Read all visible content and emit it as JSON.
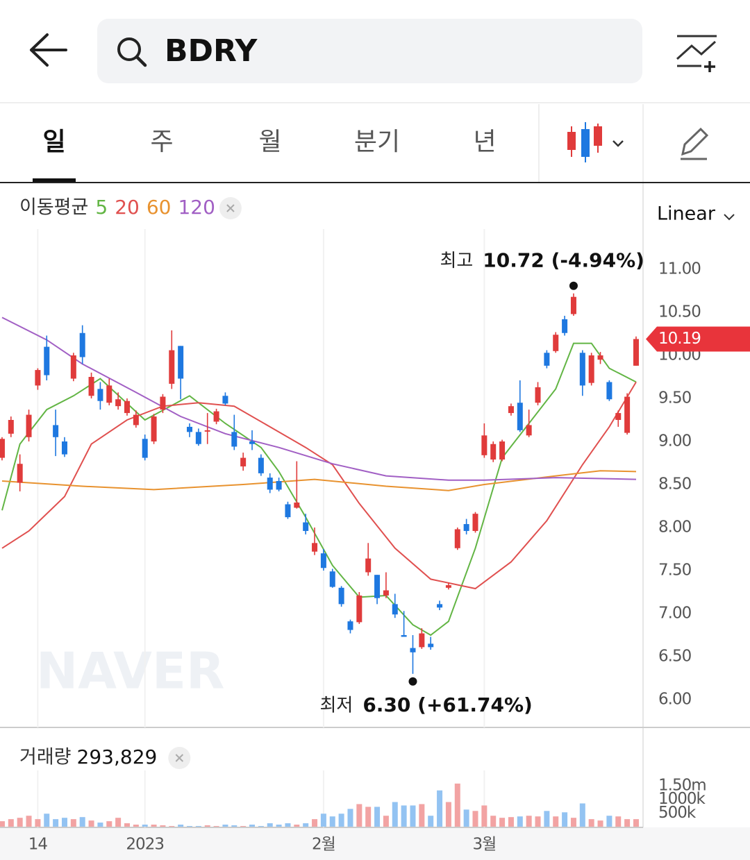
{
  "search": {
    "query": "BDRY"
  },
  "tabs": [
    "일",
    "주",
    "월",
    "분기",
    "년"
  ],
  "selected_tab": "일",
  "watermark": "NAVER",
  "chart_data": [
    {
      "type": "candlestick",
      "legend_title": "이동평균",
      "scale_label": "Linear",
      "log_scale": false,
      "grid": false,
      "xgrid": true,
      "up_color": "#e03b3b",
      "down_color": "#1e78e0",
      "xlim": [
        -0.23,
        71.78
      ],
      "ylim": [
        5.7,
        12.0
      ],
      "yticks": [
        {
          "value": 6,
          "label": "6.00"
        },
        {
          "value": 6.5,
          "label": "6.50"
        },
        {
          "value": 7,
          "label": "7.00"
        },
        {
          "value": 7.5,
          "label": "7.50"
        },
        {
          "value": 8,
          "label": "8.00"
        },
        {
          "value": 8.5,
          "label": "8.50"
        },
        {
          "value": 9,
          "label": "9.00"
        },
        {
          "value": 9.5,
          "label": "9.50"
        },
        {
          "value": 10,
          "label": "10.00"
        },
        {
          "value": 10.5,
          "label": "10.50"
        },
        {
          "value": 11,
          "label": "11.00"
        }
      ],
      "xticks": [
        {
          "value": 4,
          "label": "14"
        },
        {
          "value": 16,
          "label": "2023"
        },
        {
          "value": 36,
          "label": "2월"
        },
        {
          "value": 54,
          "label": "3월"
        }
      ],
      "open": [
        8.81,
        9.09,
        8.52,
        9.05,
        9.65,
        10.1,
        9.19,
        9.0,
        9.73,
        10.26,
        9.53,
        9.61,
        9.45,
        9.41,
        9.33,
        9.19,
        9.03,
        9.0,
        9.37,
        9.67,
        10.11,
        9.17,
        9.11,
        9.12,
        9.23,
        9.53,
        9.11,
        8.71,
        9.0,
        8.81,
        8.58,
        8.54,
        8.27,
        8.23,
        8.06,
        7.72,
        7.7,
        7.49,
        7.3,
        6.91,
        6.9,
        7.48,
        7.45,
        7.21,
        7.11,
        6.75,
        6.6,
        6.61,
        6.65,
        7.11,
        7.3,
        7.76,
        8.04,
        7.96,
        8.84,
        8.79,
        8.79,
        9.33,
        9.45,
        9.07,
        9.45,
        10.03,
        10.05,
        10.42,
        10.48,
        10.03,
        9.68,
        9.95,
        9.69,
        9.25,
        9.1,
        9.88
      ],
      "high": [
        9.05,
        9.29,
        8.85,
        9.37,
        9.85,
        10.23,
        9.37,
        9.05,
        10.03,
        10.35,
        9.8,
        9.69,
        9.73,
        9.57,
        9.5,
        9.36,
        9.08,
        9.32,
        9.55,
        10.29,
        10.11,
        9.21,
        9.15,
        9.33,
        9.38,
        9.57,
        9.31,
        8.87,
        9.13,
        8.85,
        8.63,
        8.58,
        8.3,
        8.77,
        8.16,
        8.0,
        7.75,
        7.52,
        7.32,
        6.93,
        7.25,
        7.82,
        7.45,
        7.48,
        7.23,
        7.03,
        6.75,
        6.83,
        6.73,
        7.15,
        7.36,
        8.0,
        8.1,
        8.18,
        9.21,
        9.0,
        9.02,
        9.44,
        9.71,
        9.37,
        9.69,
        10.06,
        10.27,
        10.46,
        10.72,
        10.06,
        10.03,
        10.04,
        9.71,
        9.36,
        9.56,
        10.22
      ],
      "low": [
        8.78,
        9.05,
        8.42,
        9.0,
        9.6,
        9.71,
        8.83,
        8.82,
        9.7,
        9.9,
        9.5,
        9.37,
        9.42,
        9.37,
        9.3,
        9.16,
        8.78,
        8.97,
        9.33,
        9.61,
        9.49,
        9.05,
        8.95,
        8.97,
        9.2,
        9.42,
        8.9,
        8.66,
        8.9,
        8.6,
        8.4,
        8.42,
        8.1,
        8.22,
        7.92,
        7.68,
        7.5,
        7.3,
        7.08,
        6.77,
        6.88,
        7.44,
        7.11,
        7.18,
        6.95,
        6.73,
        6.3,
        6.59,
        6.58,
        7.04,
        7.28,
        7.74,
        7.92,
        7.94,
        8.81,
        8.76,
        8.77,
        9.3,
        9.11,
        9.05,
        9.42,
        9.85,
        10.03,
        10.23,
        10.46,
        9.53,
        9.65,
        9.9,
        9.47,
        9.17,
        9.08,
        9.88
      ],
      "close": [
        9.03,
        9.25,
        8.74,
        9.31,
        9.83,
        9.77,
        9.05,
        8.85,
        10.0,
        9.98,
        9.75,
        9.47,
        9.65,
        9.49,
        9.47,
        9.31,
        8.81,
        9.29,
        9.52,
        10.06,
        9.73,
        9.11,
        8.97,
        9.13,
        9.35,
        9.44,
        8.94,
        8.81,
        8.97,
        8.63,
        8.44,
        8.44,
        8.12,
        8.29,
        7.96,
        7.82,
        7.53,
        7.31,
        7.11,
        6.81,
        7.21,
        7.64,
        7.18,
        7.27,
        6.99,
        6.73,
        6.55,
        6.77,
        6.61,
        7.07,
        7.33,
        7.98,
        7.96,
        8.16,
        9.07,
        8.97,
        9.0,
        9.41,
        9.13,
        9.19,
        9.63,
        9.88,
        10.24,
        10.26,
        10.68,
        9.65,
        10.0,
        10.0,
        9.49,
        9.33,
        9.52,
        10.19
      ],
      "series": [
        {
          "name": "5",
          "color": "#62b544",
          "x": [
            0,
            2,
            5,
            8,
            11,
            16,
            21,
            25,
            29,
            31,
            34,
            37,
            40,
            43,
            46,
            48,
            50,
            53,
            56,
            59,
            62,
            64,
            66,
            68,
            71
          ],
          "values": [
            8.2,
            8.97,
            9.37,
            9.53,
            9.73,
            9.25,
            9.53,
            9.21,
            8.93,
            8.65,
            8.12,
            7.56,
            7.19,
            7.21,
            6.87,
            6.75,
            6.91,
            7.76,
            8.81,
            9.21,
            9.61,
            10.14,
            10.14,
            9.85,
            9.69
          ]
        },
        {
          "name": "20",
          "color": "#e0504f",
          "x": [
            0,
            3,
            7,
            10,
            14,
            18,
            22,
            26,
            30,
            34,
            37,
            40,
            44,
            48,
            53,
            57,
            61,
            65,
            68,
            71
          ],
          "values": [
            7.76,
            7.96,
            8.36,
            8.97,
            9.25,
            9.41,
            9.45,
            9.41,
            9.17,
            8.93,
            8.73,
            8.28,
            7.76,
            7.4,
            7.29,
            7.6,
            8.08,
            8.73,
            9.17,
            9.69
          ]
        },
        {
          "name": "60",
          "color": "#e8922f",
          "x": [
            0,
            9,
            17,
            27,
            35,
            43,
            50,
            54,
            62,
            67,
            71
          ],
          "values": [
            8.54,
            8.48,
            8.44,
            8.5,
            8.56,
            8.48,
            8.43,
            8.5,
            8.6,
            8.66,
            8.65
          ]
        },
        {
          "name": "120",
          "color": "#a15fc4",
          "x": [
            0,
            5,
            9,
            15,
            20,
            25,
            31,
            37,
            43,
            50,
            54,
            62,
            71
          ],
          "values": [
            10.44,
            10.18,
            9.9,
            9.57,
            9.29,
            9.09,
            8.93,
            8.74,
            8.6,
            8.55,
            8.55,
            8.58,
            8.56
          ]
        }
      ],
      "high_marker": {
        "label": "최고",
        "value": 10.72,
        "value_label": "10.72 (-4.94%)"
      },
      "low_marker": {
        "label": "최저",
        "value": 6.3,
        "value_label": "6.30 (+61.74%)"
      },
      "last_price": 10.19
    },
    {
      "type": "bar",
      "title": "거래량",
      "last_volume": {
        "value": 293829,
        "label": "293,829"
      },
      "up_color": "#f2a3a3",
      "down_color": "#93c3f2",
      "xlim": [
        -0.23,
        71.78
      ],
      "ylim": [
        0,
        1800000
      ],
      "yticks": [
        {
          "value": 500000,
          "label": "500k"
        },
        {
          "value": 1000000,
          "label": "1000k"
        },
        {
          "value": 1500000,
          "label": "1.50m"
        }
      ],
      "values": [
        200000,
        275000,
        325000,
        400000,
        275000,
        475000,
        275000,
        325000,
        275000,
        350000,
        225000,
        150000,
        200000,
        325000,
        125000,
        75000,
        75000,
        75000,
        50000,
        25000,
        75000,
        25000,
        25000,
        50000,
        25000,
        75000,
        50000,
        25000,
        75000,
        25000,
        125000,
        75000,
        125000,
        75000,
        125000,
        275000,
        475000,
        375000,
        475000,
        650000,
        825000,
        725000,
        725000,
        400000,
        900000,
        775000,
        775000,
        825000,
        400000,
        1325000,
        900000,
        1575000,
        625000,
        575000,
        775000,
        400000,
        325000,
        350000,
        375000,
        400000,
        375000,
        575000,
        375000,
        525000,
        325000,
        850000,
        275000,
        225000,
        400000,
        375000,
        275000,
        275000
      ]
    }
  ]
}
